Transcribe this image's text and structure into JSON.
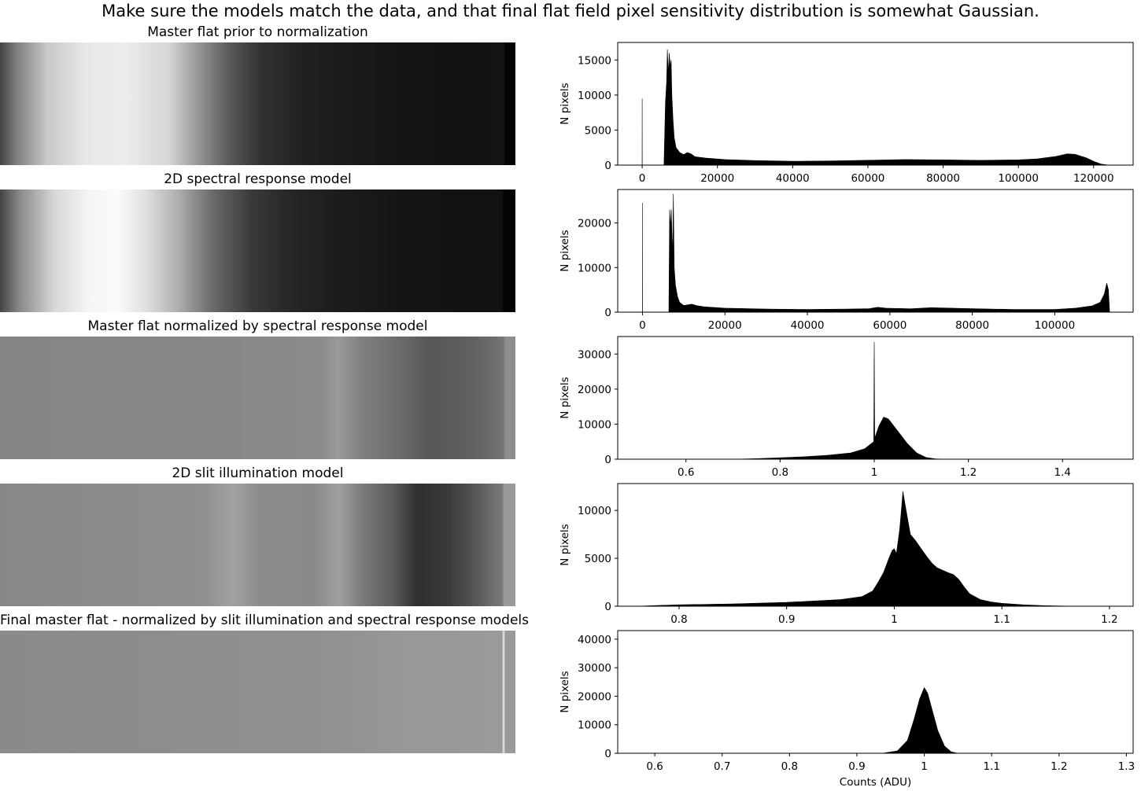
{
  "figure": {
    "suptitle": "Make sure the models match the data, and that final flat field pixel sensitivity distribution is somewhat Gaussian.",
    "image_titles": [
      "Master flat prior to normalization",
      "2D spectral response model",
      "Master flat normalized by spectral response model",
      "2D slit illumination model",
      "Final master flat - normalized by slit illumination and spectral response models"
    ]
  },
  "chart_data": [
    {
      "type": "bar",
      "panel": "histogram-1",
      "ylabel": "N pixels",
      "xlabel": "",
      "xlim": [
        -6500,
        130500
      ],
      "ylim": [
        0,
        17500
      ],
      "xticks": [
        0,
        20000,
        40000,
        60000,
        80000,
        100000,
        120000
      ],
      "yticks": [
        0,
        5000,
        10000,
        15000
      ],
      "profile": [
        [
          -800,
          0
        ],
        [
          -20,
          0
        ],
        [
          0,
          9500
        ],
        [
          20,
          0
        ],
        [
          5800,
          0
        ],
        [
          6200,
          9000
        ],
        [
          6500,
          12000
        ],
        [
          6700,
          16500
        ],
        [
          6950,
          13000
        ],
        [
          7200,
          16000
        ],
        [
          7450,
          14000
        ],
        [
          7700,
          15000
        ],
        [
          7900,
          10000
        ],
        [
          8200,
          6500
        ],
        [
          8500,
          4000
        ],
        [
          9000,
          2500
        ],
        [
          10000,
          1800
        ],
        [
          11000,
          1500
        ],
        [
          12000,
          1800
        ],
        [
          13000,
          1600
        ],
        [
          14000,
          1200
        ],
        [
          17000,
          1000
        ],
        [
          22000,
          800
        ],
        [
          30000,
          650
        ],
        [
          40000,
          550
        ],
        [
          50000,
          600
        ],
        [
          60000,
          700
        ],
        [
          70000,
          800
        ],
        [
          80000,
          750
        ],
        [
          90000,
          680
        ],
        [
          100000,
          750
        ],
        [
          105000,
          900
        ],
        [
          110000,
          1250
        ],
        [
          113000,
          1600
        ],
        [
          115000,
          1550
        ],
        [
          118000,
          1050
        ],
        [
          120000,
          550
        ],
        [
          122000,
          150
        ],
        [
          124000,
          0
        ],
        [
          130500,
          0
        ]
      ]
    },
    {
      "type": "bar",
      "panel": "histogram-2",
      "ylabel": "N pixels",
      "xlabel": "",
      "xlim": [
        -6000,
        119000
      ],
      "ylim": [
        0,
        27500
      ],
      "xticks": [
        0,
        20000,
        40000,
        60000,
        80000,
        100000
      ],
      "yticks": [
        0,
        10000,
        20000
      ],
      "profile": [
        [
          -800,
          0
        ],
        [
          -20,
          0
        ],
        [
          0,
          24500
        ],
        [
          20,
          0
        ],
        [
          6400,
          0
        ],
        [
          6600,
          23000
        ],
        [
          6800,
          19000
        ],
        [
          7000,
          23000
        ],
        [
          7300,
          12000
        ],
        [
          7500,
          26500
        ],
        [
          7700,
          10000
        ],
        [
          8000,
          6000
        ],
        [
          8500,
          3500
        ],
        [
          9000,
          2200
        ],
        [
          10000,
          1500
        ],
        [
          12000,
          1800
        ],
        [
          13000,
          1500
        ],
        [
          15000,
          1200
        ],
        [
          20000,
          900
        ],
        [
          30000,
          700
        ],
        [
          40000,
          600
        ],
        [
          50000,
          700
        ],
        [
          55000,
          800
        ],
        [
          57000,
          1100
        ],
        [
          59000,
          900
        ],
        [
          65000,
          750
        ],
        [
          70000,
          1000
        ],
        [
          75000,
          900
        ],
        [
          80000,
          800
        ],
        [
          90000,
          600
        ],
        [
          100000,
          600
        ],
        [
          105000,
          900
        ],
        [
          109000,
          1400
        ],
        [
          111000,
          2200
        ],
        [
          112000,
          4000
        ],
        [
          112600,
          6500
        ],
        [
          113000,
          5000
        ],
        [
          113300,
          0
        ],
        [
          119000,
          0
        ]
      ]
    },
    {
      "type": "bar",
      "panel": "histogram-3",
      "ylabel": "N pixels",
      "xlabel": "",
      "xlim": [
        0.455,
        1.55
      ],
      "ylim": [
        0,
        35000
      ],
      "xticks": [
        0.6,
        0.8,
        1.0,
        1.2,
        1.4
      ],
      "yticks": [
        0,
        10000,
        20000,
        30000
      ],
      "profile": [
        [
          0.455,
          0
        ],
        [
          0.7,
          0
        ],
        [
          0.75,
          150
        ],
        [
          0.8,
          400
        ],
        [
          0.85,
          700
        ],
        [
          0.9,
          1100
        ],
        [
          0.95,
          1800
        ],
        [
          0.98,
          3000
        ],
        [
          0.999,
          5000
        ],
        [
          1.0,
          33500
        ],
        [
          1.001,
          6000
        ],
        [
          1.01,
          9500
        ],
        [
          1.02,
          12000
        ],
        [
          1.03,
          11500
        ],
        [
          1.05,
          8000
        ],
        [
          1.07,
          4500
        ],
        [
          1.09,
          1800
        ],
        [
          1.11,
          500
        ],
        [
          1.13,
          100
        ],
        [
          1.15,
          0
        ],
        [
          1.55,
          0
        ]
      ]
    },
    {
      "type": "bar",
      "panel": "histogram-4",
      "ylabel": "N pixels",
      "xlabel": "",
      "xlim": [
        0.743,
        1.222
      ],
      "ylim": [
        0,
        12800
      ],
      "xticks": [
        0.8,
        0.9,
        1.0,
        1.1,
        1.2
      ],
      "yticks": [
        0,
        5000,
        10000
      ],
      "profile": [
        [
          0.743,
          0
        ],
        [
          0.76,
          0
        ],
        [
          0.78,
          80
        ],
        [
          0.8,
          150
        ],
        [
          0.85,
          250
        ],
        [
          0.9,
          400
        ],
        [
          0.95,
          700
        ],
        [
          0.97,
          1000
        ],
        [
          0.98,
          1600
        ],
        [
          0.985,
          2500
        ],
        [
          0.99,
          3500
        ],
        [
          0.995,
          5000
        ],
        [
          0.998,
          5800
        ],
        [
          1.0,
          6000
        ],
        [
          1.002,
          5500
        ],
        [
          1.005,
          8000
        ],
        [
          1.007,
          10500
        ],
        [
          1.008,
          12000
        ],
        [
          1.011,
          10000
        ],
        [
          1.015,
          7500
        ],
        [
          1.02,
          6800
        ],
        [
          1.025,
          6000
        ],
        [
          1.03,
          5200
        ],
        [
          1.035,
          4500
        ],
        [
          1.04,
          4000
        ],
        [
          1.05,
          3500
        ],
        [
          1.055,
          3300
        ],
        [
          1.06,
          2800
        ],
        [
          1.065,
          2000
        ],
        [
          1.07,
          1300
        ],
        [
          1.08,
          700
        ],
        [
          1.09,
          450
        ],
        [
          1.1,
          300
        ],
        [
          1.12,
          150
        ],
        [
          1.14,
          60
        ],
        [
          1.16,
          20
        ],
        [
          1.17,
          0
        ],
        [
          1.222,
          0
        ]
      ]
    },
    {
      "type": "bar",
      "panel": "histogram-5",
      "ylabel": "N pixels",
      "xlabel": "Counts (ADU)",
      "xlim": [
        0.545,
        1.31
      ],
      "ylim": [
        0,
        43000
      ],
      "xticks": [
        0.6,
        0.7,
        0.8,
        0.9,
        1.0,
        1.1,
        1.2,
        1.3
      ],
      "yticks": [
        0,
        10000,
        20000,
        30000,
        40000
      ],
      "profile": [
        [
          0.545,
          0
        ],
        [
          0.9,
          0
        ],
        [
          0.94,
          80
        ],
        [
          0.96,
          800
        ],
        [
          0.975,
          4500
        ],
        [
          0.985,
          12000
        ],
        [
          0.993,
          19000
        ],
        [
          1.0,
          23000
        ],
        [
          1.005,
          21000
        ],
        [
          1.012,
          15000
        ],
        [
          1.02,
          8000
        ],
        [
          1.03,
          2500
        ],
        [
          1.04,
          500
        ],
        [
          1.05,
          0
        ],
        [
          1.31,
          0
        ]
      ]
    }
  ]
}
